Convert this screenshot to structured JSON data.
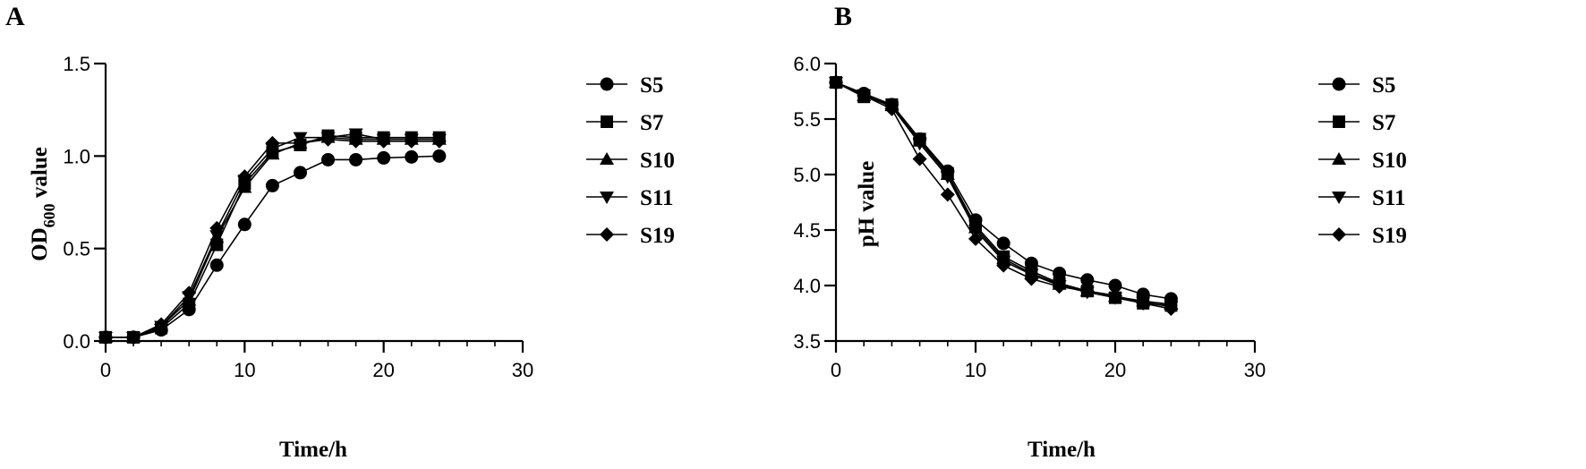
{
  "panels": [
    {
      "letter": "A",
      "ylabel_main": "OD",
      "ylabel_sub": "600",
      "ylabel_suffix": " value"
    },
    {
      "letter": "B",
      "ylabel_main": "pH value",
      "ylabel_sub": "",
      "ylabel_suffix": ""
    }
  ],
  "chart_data": [
    {
      "type": "line",
      "title": "",
      "xlabel": "Time/h",
      "ylabel": "OD600 value",
      "xlim": [
        0,
        30
      ],
      "ylim": [
        0,
        1.5
      ],
      "x_ticks": [
        "0",
        "10",
        "20",
        "30"
      ],
      "y_ticks": [
        "0.0",
        "0.5",
        "1.0",
        "1.5"
      ],
      "x_minor_step": 2,
      "legend_position": "right",
      "grid": false,
      "x": [
        0,
        2,
        4,
        6,
        8,
        10,
        12,
        14,
        16,
        18,
        20,
        22,
        24
      ],
      "series": [
        {
          "name": "S5",
          "marker": "circle",
          "values": [
            0.02,
            0.02,
            0.06,
            0.17,
            0.41,
            0.63,
            0.84,
            0.91,
            0.98,
            0.98,
            0.99,
            0.995,
            1.0
          ]
        },
        {
          "name": "S7",
          "marker": "square",
          "values": [
            0.02,
            0.02,
            0.07,
            0.2,
            0.52,
            0.85,
            1.02,
            1.06,
            1.11,
            1.1,
            1.1,
            1.1,
            1.1
          ]
        },
        {
          "name": "S10",
          "marker": "triangle-up",
          "values": [
            0.02,
            0.02,
            0.08,
            0.22,
            0.56,
            0.83,
            1.01,
            1.07,
            1.1,
            1.09,
            1.09,
            1.09,
            1.09
          ]
        },
        {
          "name": "S11",
          "marker": "triangle-down",
          "values": [
            0.02,
            0.02,
            0.08,
            0.24,
            0.57,
            0.87,
            1.04,
            1.1,
            1.1,
            1.12,
            1.09,
            1.09,
            1.09
          ]
        },
        {
          "name": "S19",
          "marker": "diamond",
          "values": [
            0.02,
            0.02,
            0.09,
            0.26,
            0.61,
            0.89,
            1.07,
            1.07,
            1.09,
            1.08,
            1.08,
            1.08,
            1.08
          ]
        }
      ]
    },
    {
      "type": "line",
      "title": "",
      "xlabel": "Time/h",
      "ylabel": "pH value",
      "xlim": [
        0,
        30
      ],
      "ylim": [
        3.5,
        6.0
      ],
      "x_ticks": [
        "0",
        "10",
        "20",
        "30"
      ],
      "y_ticks": [
        "3.5",
        "4.0",
        "4.5",
        "5.0",
        "5.5",
        "6.0"
      ],
      "x_minor_step": 2,
      "legend_position": "right",
      "grid": false,
      "x": [
        0,
        2,
        4,
        6,
        8,
        10,
        12,
        14,
        16,
        18,
        20,
        22,
        24
      ],
      "series": [
        {
          "name": "S5",
          "marker": "circle",
          "values": [
            5.83,
            5.73,
            5.63,
            5.32,
            5.03,
            4.59,
            4.38,
            4.2,
            4.11,
            4.05,
            4.0,
            3.92,
            3.88
          ]
        },
        {
          "name": "S7",
          "marker": "square",
          "values": [
            5.83,
            5.7,
            5.63,
            5.32,
            5.01,
            4.54,
            4.26,
            4.13,
            4.02,
            3.95,
            3.89,
            3.84,
            3.82
          ]
        },
        {
          "name": "S10",
          "marker": "triangle-up",
          "values": [
            5.83,
            5.71,
            5.62,
            5.3,
            5.0,
            4.52,
            4.24,
            4.11,
            4.01,
            3.95,
            3.9,
            3.86,
            3.83
          ]
        },
        {
          "name": "S11",
          "marker": "triangle-down",
          "values": [
            5.83,
            5.72,
            5.61,
            5.28,
            4.98,
            4.5,
            4.22,
            4.1,
            4.0,
            3.94,
            3.89,
            3.85,
            3.81
          ]
        },
        {
          "name": "S19",
          "marker": "diamond",
          "values": [
            5.83,
            5.71,
            5.59,
            5.14,
            4.82,
            4.42,
            4.18,
            4.06,
            3.99,
            3.95,
            3.91,
            3.84,
            3.79
          ]
        }
      ]
    }
  ]
}
